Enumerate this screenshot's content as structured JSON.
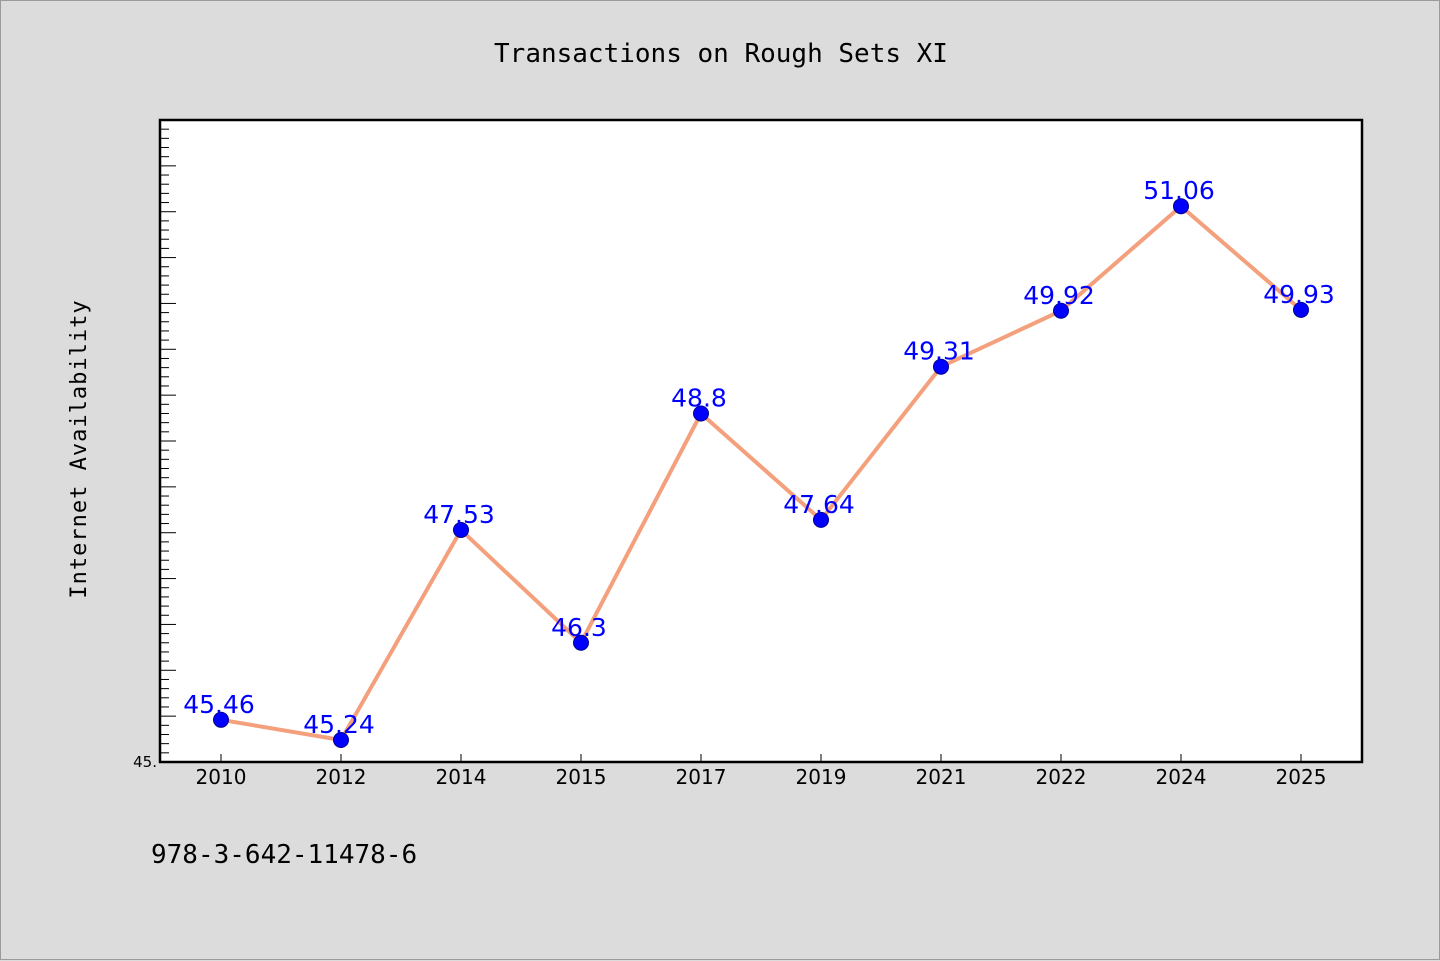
{
  "chart_data": {
    "type": "line",
    "title": "Transactions on Rough Sets XI",
    "ylabel": "Internet Availability",
    "xlabel": "",
    "categories": [
      "2010",
      "2012",
      "2014",
      "2015",
      "2017",
      "2019",
      "2021",
      "2022",
      "2024",
      "2025"
    ],
    "series": [
      {
        "values": [
          45.46,
          45.24,
          47.53,
          46.3,
          48.8,
          47.64,
          49.31,
          49.92,
          51.06,
          49.93
        ],
        "data_labels": [
          "45.46",
          "45.24",
          "47.53",
          "46.3",
          "48.8",
          "47.64",
          "49.31",
          "49.92",
          "51.06",
          "49.93"
        ],
        "line_color": "#f4a07c",
        "marker_color": "#0000ff"
      }
    ],
    "ylim": [
      45,
      52
    ],
    "y_tick_labels": [
      "45."
    ],
    "grid": false,
    "legend": "none"
  },
  "footer": {
    "text": "978-3-642-11478-6"
  },
  "colors": {
    "background": "#dcdcdc",
    "plot_background": "#ffffff",
    "line": "#f4a07c",
    "marker": "#0000ff",
    "data_label": "#0000ff"
  }
}
